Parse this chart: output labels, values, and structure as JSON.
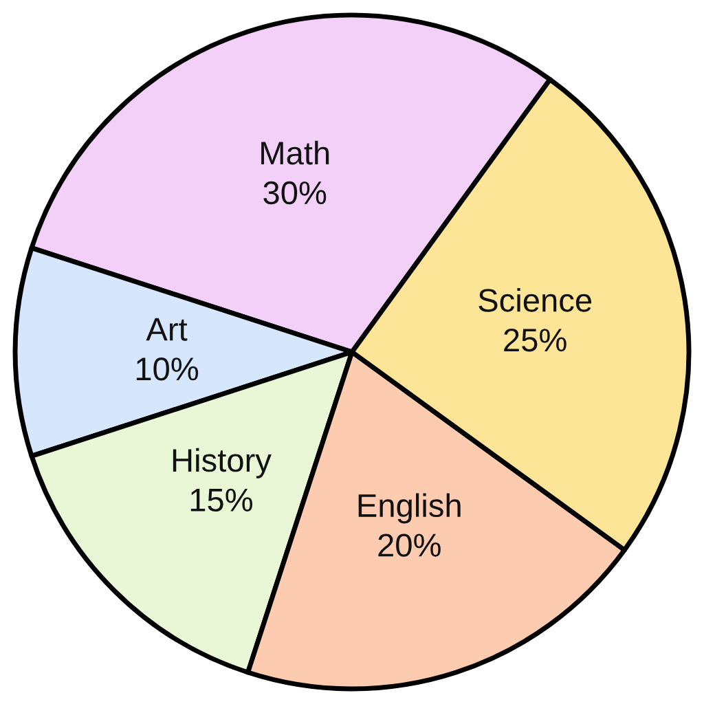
{
  "chart_data": {
    "type": "pie",
    "categories": [
      "Math",
      "Art",
      "History",
      "English",
      "Science"
    ],
    "values": [
      30,
      10,
      15,
      20,
      25
    ],
    "value_labels": [
      "30%",
      "10%",
      "15%",
      "20%",
      "25%"
    ],
    "colors": [
      "#f2d0f8",
      "#d6e6fc",
      "#eaf7d6",
      "#fccbb0",
      "#fde598"
    ],
    "legend": false
  }
}
